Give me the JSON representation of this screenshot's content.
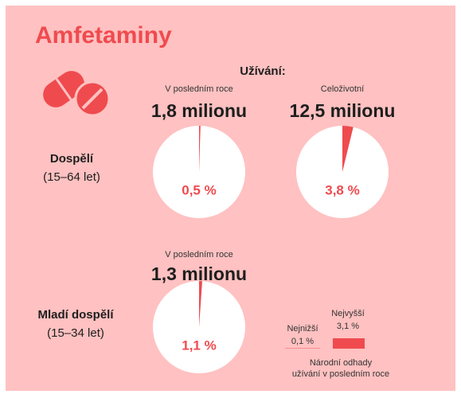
{
  "title": "Amfetaminy",
  "usage_heading": "Užívání:",
  "rows": [
    {
      "label": "Dospělí",
      "age": "(15–64 let)"
    },
    {
      "label": "Mladí dospělí",
      "age": "(15–34 let)"
    }
  ],
  "chart_data": [
    {
      "type": "pie",
      "subtitle": "V posledním roce",
      "title": "1,8 milionu",
      "values": [
        0.5
      ],
      "value_labels": [
        "0,5 %"
      ],
      "color": "#ef4b4f"
    },
    {
      "type": "pie",
      "subtitle": "Celoživotní",
      "title": "12,5 milionu",
      "values": [
        3.8
      ],
      "value_labels": [
        "3,8 %"
      ],
      "color": "#ef4b4f"
    },
    {
      "type": "pie",
      "subtitle": "V posledním roce",
      "title": "1,3 milionu",
      "values": [
        1.1
      ],
      "value_labels": [
        "1,1 %"
      ],
      "color": "#ef4b4f"
    }
  ],
  "range_note": {
    "low_name": "Nejnižší",
    "low": 0.1,
    "low_label": "0,1 %",
    "high_name": "Nejvyšší",
    "high": 3.1,
    "high_label": "3,1 %",
    "color": "#ef4b4f",
    "caption": [
      "Národní odhady",
      "užívání v posledním roce"
    ]
  }
}
